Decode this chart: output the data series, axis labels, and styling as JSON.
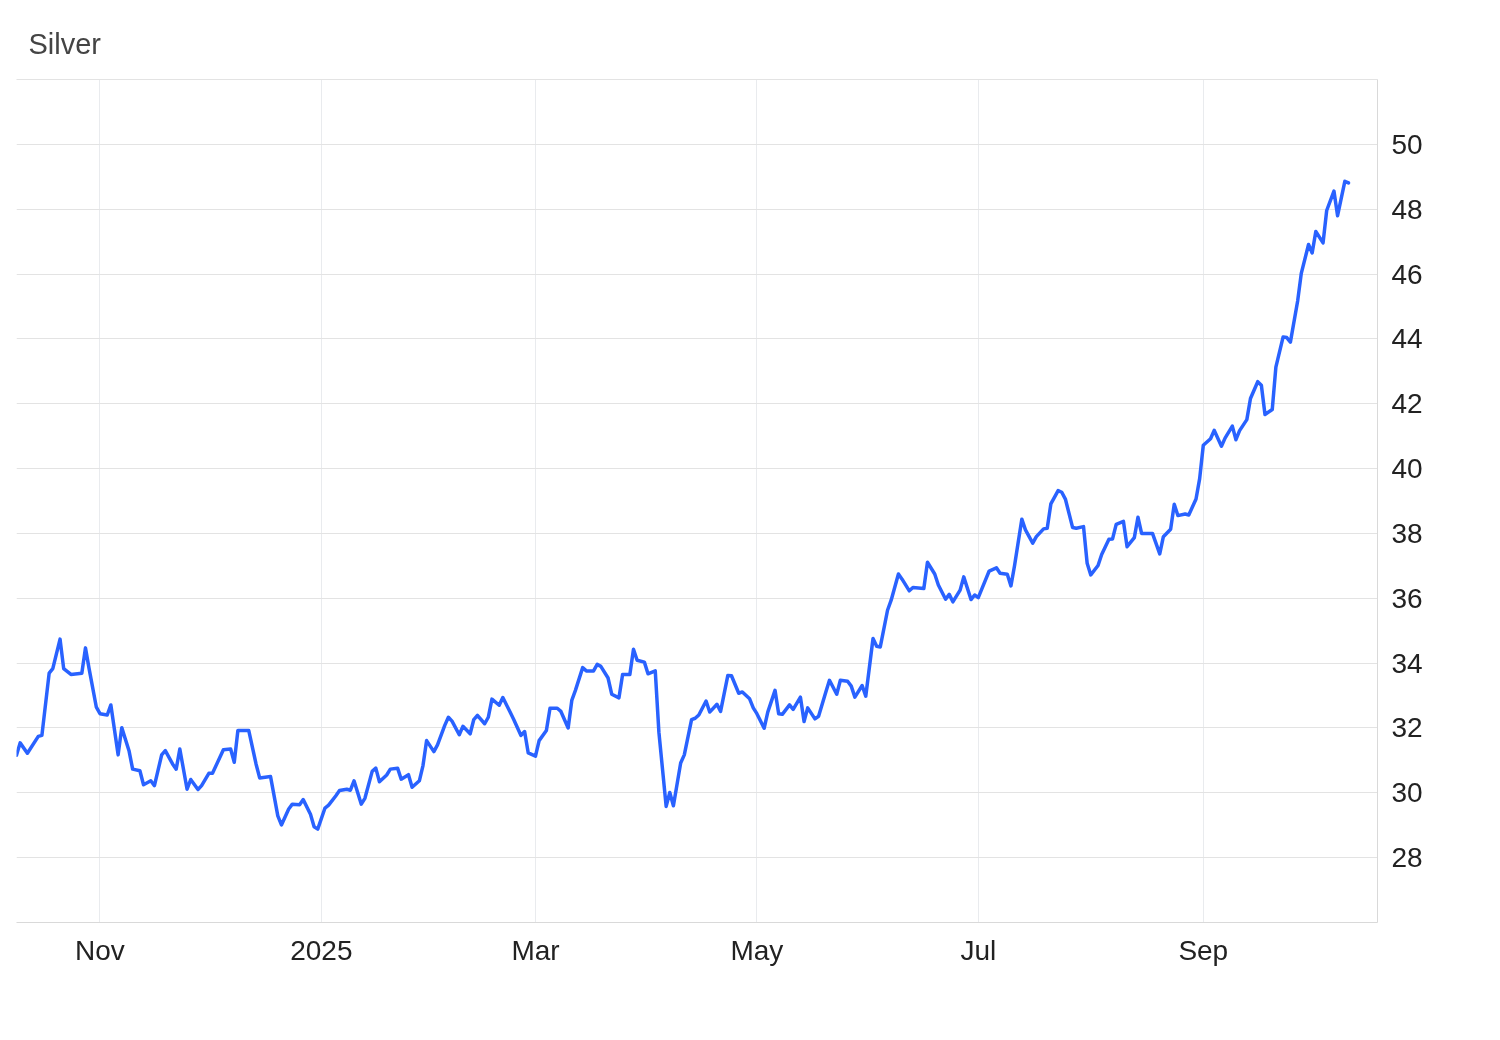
{
  "chart_data": {
    "type": "line",
    "title": "Silver",
    "x": [
      "2024-10-09",
      "2024-10-10",
      "2024-10-12",
      "2024-10-15",
      "2024-10-16",
      "2024-10-18",
      "2024-10-19",
      "2024-10-21",
      "2024-10-22",
      "2024-10-24",
      "2024-10-27",
      "2024-10-28",
      "2024-10-29",
      "2024-10-31",
      "2024-11-01",
      "2024-11-03",
      "2024-11-04",
      "2024-11-06",
      "2024-11-07",
      "2024-11-09",
      "2024-11-10",
      "2024-11-12",
      "2024-11-13",
      "2024-11-15",
      "2024-11-16",
      "2024-11-18",
      "2024-11-19",
      "2024-11-21",
      "2024-11-22",
      "2024-11-23",
      "2024-11-25",
      "2024-11-26",
      "2024-11-28",
      "2024-11-29",
      "2024-12-01",
      "2024-12-02",
      "2024-12-05",
      "2024-12-07",
      "2024-12-08",
      "2024-12-09",
      "2024-12-12",
      "2024-12-14",
      "2024-12-15",
      "2024-12-18",
      "2024-12-20",
      "2024-12-21",
      "2024-12-23",
      "2024-12-24",
      "2024-12-26",
      "2024-12-27",
      "2024-12-29",
      "2024-12-30",
      "2024-12-31",
      "2025-01-02",
      "2025-01-03",
      "2025-01-05",
      "2025-01-06",
      "2025-01-08",
      "2025-01-09",
      "2025-01-10",
      "2025-01-12",
      "2025-01-13",
      "2025-01-15",
      "2025-01-16",
      "2025-01-17",
      "2025-01-19",
      "2025-01-20",
      "2025-01-22",
      "2025-01-23",
      "2025-01-25",
      "2025-01-26",
      "2025-01-28",
      "2025-01-29",
      "2025-01-30",
      "2025-02-01",
      "2025-02-02",
      "2025-02-04",
      "2025-02-05",
      "2025-02-06",
      "2025-02-08",
      "2025-02-09",
      "2025-02-11",
      "2025-02-12",
      "2025-02-13",
      "2025-02-15",
      "2025-02-16",
      "2025-02-17",
      "2025-02-19",
      "2025-02-20",
      "2025-02-22",
      "2025-02-23",
      "2025-02-25",
      "2025-02-26",
      "2025-02-27",
      "2025-03-01",
      "2025-03-02",
      "2025-03-04",
      "2025-03-05",
      "2025-03-07",
      "2025-03-08",
      "2025-03-10",
      "2025-03-11",
      "2025-03-12",
      "2025-03-14",
      "2025-03-15",
      "2025-03-17",
      "2025-03-18",
      "2025-03-19",
      "2025-03-21",
      "2025-03-22",
      "2025-03-24",
      "2025-03-25",
      "2025-03-27",
      "2025-03-28",
      "2025-03-29",
      "2025-03-31",
      "2025-04-01",
      "2025-04-03",
      "2025-04-04",
      "2025-04-06",
      "2025-04-07",
      "2025-04-08",
      "2025-04-10",
      "2025-04-11",
      "2025-04-13",
      "2025-04-14",
      "2025-04-15",
      "2025-04-17",
      "2025-04-18",
      "2025-04-20",
      "2025-04-21",
      "2025-04-23",
      "2025-04-24",
      "2025-04-26",
      "2025-04-27",
      "2025-04-29",
      "2025-04-30",
      "2025-05-01",
      "2025-05-03",
      "2025-05-04",
      "2025-05-06",
      "2025-05-07",
      "2025-05-08",
      "2025-05-10",
      "2025-05-11",
      "2025-05-13",
      "2025-05-14",
      "2025-05-15",
      "2025-05-17",
      "2025-05-18",
      "2025-05-20",
      "2025-05-21",
      "2025-05-23",
      "2025-05-24",
      "2025-05-26",
      "2025-05-27",
      "2025-05-28",
      "2025-05-30",
      "2025-05-31",
      "2025-06-02",
      "2025-06-03",
      "2025-06-04",
      "2025-06-06",
      "2025-06-07",
      "2025-06-09",
      "2025-06-10",
      "2025-06-12",
      "2025-06-13",
      "2025-06-16",
      "2025-06-17",
      "2025-06-19",
      "2025-06-20",
      "2025-06-22",
      "2025-06-23",
      "2025-06-24",
      "2025-06-26",
      "2025-06-27",
      "2025-06-29",
      "2025-06-30",
      "2025-07-01",
      "2025-07-03",
      "2025-07-04",
      "2025-07-06",
      "2025-07-07",
      "2025-07-09",
      "2025-07-10",
      "2025-07-11",
      "2025-07-13",
      "2025-07-14",
      "2025-07-16",
      "2025-07-17",
      "2025-07-19",
      "2025-07-20",
      "2025-07-21",
      "2025-07-23",
      "2025-07-24",
      "2025-07-25",
      "2025-07-27",
      "2025-07-28",
      "2025-07-30",
      "2025-07-31",
      "2025-08-01",
      "2025-08-03",
      "2025-08-04",
      "2025-08-06",
      "2025-08-07",
      "2025-08-08",
      "2025-08-10",
      "2025-08-11",
      "2025-08-13",
      "2025-08-14",
      "2025-08-15",
      "2025-08-17",
      "2025-08-18",
      "2025-08-20",
      "2025-08-21",
      "2025-08-23",
      "2025-08-24",
      "2025-08-25",
      "2025-08-27",
      "2025-08-28",
      "2025-08-30",
      "2025-08-31",
      "2025-09-01",
      "2025-09-03",
      "2025-09-04",
      "2025-09-06",
      "2025-09-07",
      "2025-09-09",
      "2025-09-10",
      "2025-09-11",
      "2025-09-13",
      "2025-09-14",
      "2025-09-16",
      "2025-09-17",
      "2025-09-18",
      "2025-09-20",
      "2025-09-21",
      "2025-09-23",
      "2025-09-24",
      "2025-09-25",
      "2025-09-27",
      "2025-09-28",
      "2025-09-30",
      "2025-10-01",
      "2025-10-02",
      "2025-10-04",
      "2025-10-05",
      "2025-10-07",
      "2025-10-08",
      "2025-10-10",
      "2025-10-11"
    ],
    "series": [
      {
        "color": "#2962ff",
        "values": [
          31.16,
          31.54,
          31.22,
          31.74,
          31.77,
          33.69,
          33.83,
          34.74,
          33.83,
          33.65,
          33.69,
          34.47,
          33.83,
          32.64,
          32.44,
          32.4,
          32.71,
          31.17,
          32.01,
          31.3,
          30.73,
          30.68,
          30.25,
          30.37,
          30.22,
          31.17,
          31.3,
          30.89,
          30.73,
          31.35,
          30.11,
          30.41,
          30.1,
          30.22,
          30.6,
          30.6,
          31.33,
          31.35,
          30.94,
          31.92,
          31.92,
          30.89,
          30.46,
          30.5,
          29.29,
          29.01,
          29.5,
          29.65,
          29.63,
          29.79,
          29.34,
          28.95,
          28.88,
          29.53,
          29.62,
          29.91,
          30.07,
          30.11,
          30.08,
          30.37,
          29.65,
          29.83,
          30.66,
          30.76,
          30.34,
          30.55,
          30.73,
          30.76,
          30.42,
          30.56,
          30.17,
          30.37,
          30.84,
          31.61,
          31.27,
          31.48,
          32.08,
          32.33,
          32.21,
          31.79,
          32.05,
          31.82,
          32.26,
          32.39,
          32.13,
          32.33,
          32.89,
          32.7,
          32.94,
          32.49,
          32.26,
          31.77,
          31.89,
          31.23,
          31.13,
          31.61,
          31.92,
          32.61,
          32.61,
          32.51,
          32.0,
          32.85,
          33.16,
          33.86,
          33.76,
          33.76,
          33.96,
          33.9,
          33.54,
          33.04,
          32.93,
          33.65,
          33.65,
          34.43,
          34.09,
          34.03,
          33.67,
          33.76,
          31.87,
          29.58,
          30.01,
          29.6,
          30.92,
          31.17,
          32.26,
          32.3,
          32.4,
          32.83,
          32.49,
          32.73,
          32.51,
          33.62,
          33.61,
          33.07,
          33.11,
          32.9,
          32.62,
          32.44,
          31.99,
          32.49,
          33.16,
          32.44,
          32.42,
          32.71,
          32.57,
          32.95,
          32.2,
          32.62,
          32.28,
          32.36,
          33.11,
          33.47,
          33.04,
          33.47,
          33.44,
          33.29,
          32.95,
          33.31,
          32.98,
          34.76,
          34.52,
          34.5,
          35.63,
          35.94,
          36.75,
          36.59,
          36.23,
          36.33,
          36.3,
          37.11,
          36.75,
          36.41,
          35.97,
          36.12,
          35.89,
          36.25,
          36.66,
          35.96,
          36.1,
          36.02,
          36.57,
          36.84,
          36.94,
          36.77,
          36.74,
          36.38,
          37.01,
          38.44,
          38.11,
          37.7,
          37.9,
          38.14,
          38.16,
          38.91,
          39.32,
          39.27,
          39.06,
          38.18,
          38.16,
          38.21,
          37.08,
          36.72,
          37.01,
          37.35,
          37.82,
          37.83,
          38.28,
          38.37,
          37.59,
          37.87,
          38.5,
          38.0,
          38.0,
          38.0,
          37.37,
          37.9,
          38.13,
          38.9,
          38.55,
          38.6,
          38.57,
          39.06,
          39.69,
          40.72,
          40.92,
          41.18,
          40.69,
          40.94,
          41.31,
          40.89,
          41.17,
          41.51,
          42.16,
          42.68,
          42.57,
          41.67,
          41.82,
          43.13,
          44.06,
          44.04,
          43.9,
          45.17,
          46.02,
          46.91,
          46.65,
          47.31,
          46.96,
          47.96,
          48.56,
          47.8,
          48.86,
          48.81
        ]
      }
    ],
    "xlim": [
      "2024-10-09",
      "2025-10-19"
    ],
    "xticks": [
      {
        "value": "2024-11-01",
        "label": "Nov"
      },
      {
        "value": "2025-01-01",
        "label": "2025"
      },
      {
        "value": "2025-03-01",
        "label": "Mar"
      },
      {
        "value": "2025-05-01",
        "label": "May"
      },
      {
        "value": "2025-07-01",
        "label": "Jul"
      },
      {
        "value": "2025-09-01",
        "label": "Sep"
      }
    ],
    "ylim": [
      26,
      52
    ],
    "yticks": [
      28,
      30,
      32,
      34,
      36,
      38,
      40,
      42,
      44,
      46,
      48,
      50
    ],
    "grid": true
  }
}
